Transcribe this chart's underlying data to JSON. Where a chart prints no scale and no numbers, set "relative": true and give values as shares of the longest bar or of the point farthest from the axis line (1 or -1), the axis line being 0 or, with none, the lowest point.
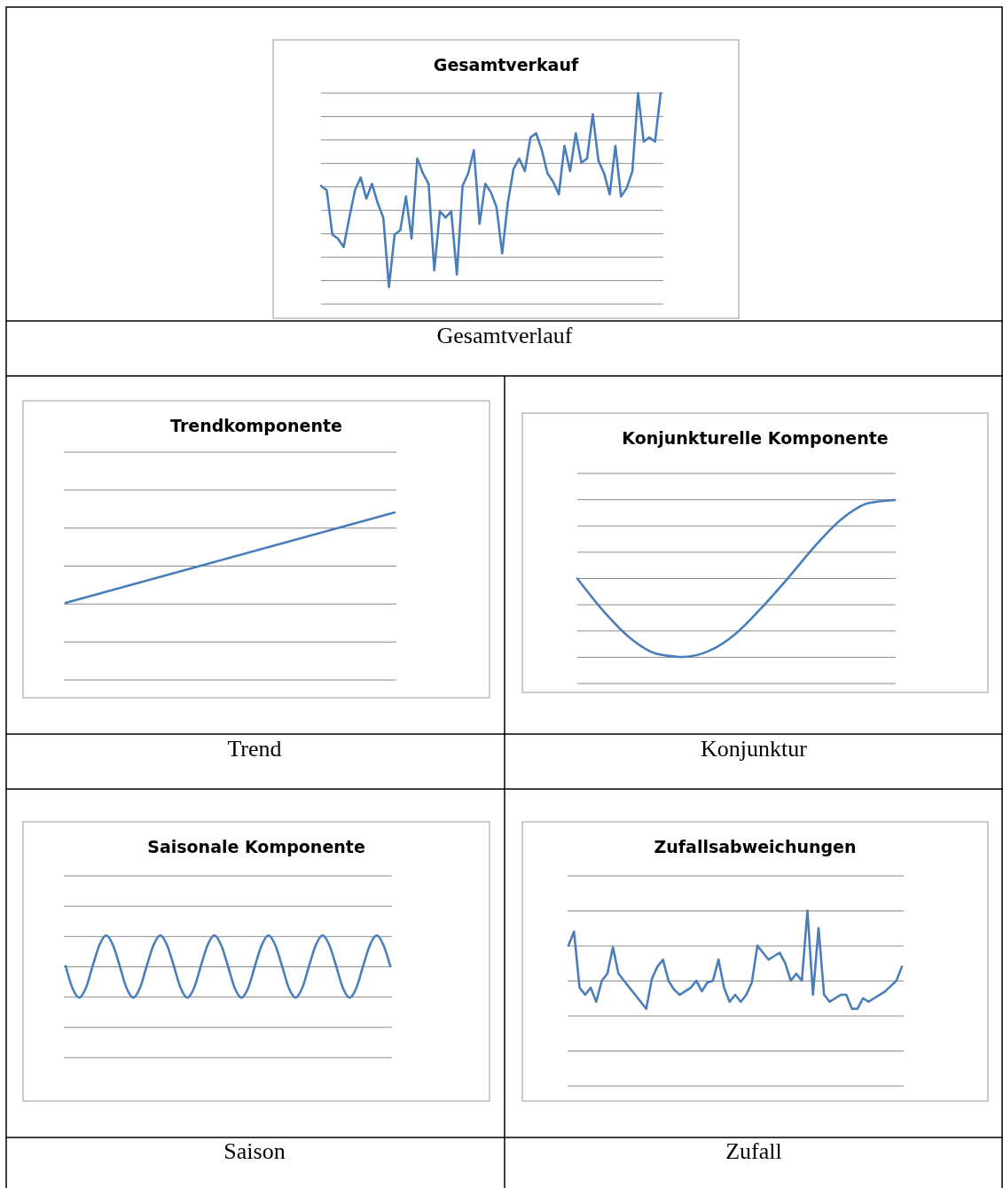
{
  "chart_data": [
    {
      "type": "line",
      "title": "Gesamtverkauf",
      "relative": true,
      "grid": "y",
      "color": "#4a7ebb",
      "annotations": [
        "Gesamtverlauf"
      ],
      "categories": [
        null,
        null,
        null,
        null,
        null,
        null,
        null,
        null,
        null,
        null,
        null,
        null,
        null,
        null,
        null,
        null,
        null,
        null,
        null,
        null,
        null,
        null,
        null,
        null,
        null,
        null,
        null,
        null,
        null,
        null,
        null,
        null,
        null,
        null,
        null,
        null,
        null,
        null,
        null,
        null,
        null,
        null,
        null,
        null,
        null,
        null,
        null,
        null,
        null,
        null,
        null,
        null,
        null,
        null,
        null,
        null,
        null,
        null,
        null,
        null,
        null
      ],
      "values": [
        0.56,
        0.54,
        0.33,
        0.31,
        0.27,
        0.41,
        0.54,
        0.6,
        0.5,
        0.57,
        0.48,
        0.41,
        0.08,
        0.33,
        0.35,
        0.51,
        0.31,
        0.69,
        0.62,
        0.57,
        0.16,
        0.44,
        0.41,
        0.44,
        0.14,
        0.56,
        0.62,
        0.73,
        0.38,
        0.57,
        0.53,
        0.46,
        0.24,
        0.48,
        0.64,
        0.69,
        0.63,
        0.79,
        0.81,
        0.73,
        0.62,
        0.58,
        0.52,
        0.75,
        0.63,
        0.81,
        0.67,
        0.69,
        0.9,
        0.68,
        0.62,
        0.52,
        0.75,
        0.51,
        0.55,
        0.63,
        1,
        0.77,
        0.79,
        0.77,
        1
      ]
    },
    {
      "type": "line",
      "title": "Trendkomponente",
      "relative": true,
      "grid": "y",
      "color": "#4a7ebb",
      "annotations": [
        "Trend"
      ],
      "categories": [
        null,
        null,
        null,
        null,
        null,
        null,
        null,
        null,
        null,
        null,
        null,
        null,
        null
      ],
      "values": [
        0.46,
        0.505,
        0.55,
        0.595,
        0.64,
        0.685,
        0.73,
        0.775,
        0.82,
        0.865,
        0.91,
        0.955,
        1
      ]
    },
    {
      "type": "line",
      "title": "Konjunkturelle Komponente",
      "relative": true,
      "grid": "y",
      "color": "#4a7ebb",
      "annotations": [
        "Konjunktur"
      ],
      "categories": [
        null,
        null,
        null,
        null,
        null,
        null,
        null,
        null,
        null,
        null,
        null,
        null,
        null
      ],
      "values": [
        0.5,
        0.29,
        0.12,
        0.02,
        0,
        0.04,
        0.15,
        0.32,
        0.51,
        0.71,
        0.88,
        0.98,
        1
      ]
    },
    {
      "type": "line",
      "title": "Saisonale Komponente",
      "relative": true,
      "grid": "y",
      "color": "#4a7ebb",
      "annotations": [
        "Saison"
      ],
      "categories": [
        null,
        null,
        null,
        null,
        null,
        null,
        null,
        null,
        null,
        null,
        null,
        null,
        null,
        null,
        null,
        null,
        null,
        null,
        null,
        null,
        null,
        null,
        null,
        null,
        null,
        null,
        null,
        null,
        null,
        null,
        null,
        null,
        null,
        null,
        null,
        null,
        null,
        null,
        null,
        null,
        null,
        null,
        null,
        null,
        null,
        null,
        null,
        null,
        null
      ],
      "values": [
        0.75,
        0.57,
        0.49,
        0.57,
        0.75,
        0.92,
        1,
        0.92,
        0.75,
        0.57,
        0.49,
        0.57,
        0.75,
        0.92,
        1,
        0.92,
        0.75,
        0.57,
        0.49,
        0.57,
        0.75,
        0.92,
        1,
        0.92,
        0.75,
        0.57,
        0.49,
        0.57,
        0.75,
        0.92,
        1,
        0.92,
        0.75,
        0.57,
        0.49,
        0.57,
        0.75,
        0.92,
        1,
        0.92,
        0.75,
        0.57,
        0.49,
        0.57,
        0.75,
        0.92,
        1,
        0.92,
        0.75
      ]
    },
    {
      "type": "line",
      "title": "Zufallsabweichungen",
      "relative": true,
      "grid": "y",
      "color": "#4a7ebb",
      "annotations": [
        "Zufall"
      ],
      "categories": [
        null,
        null,
        null,
        null,
        null,
        null,
        null,
        null,
        null,
        null,
        null,
        null,
        null,
        null,
        null,
        null,
        null,
        null,
        null,
        null,
        null,
        null,
        null,
        null,
        null,
        null,
        null,
        null,
        null,
        null,
        null,
        null,
        null,
        null,
        null,
        null,
        null,
        null,
        null,
        null,
        null,
        null,
        null,
        null,
        null,
        null,
        null,
        null,
        null,
        null,
        null,
        null,
        null,
        null,
        null,
        null,
        null,
        null,
        null,
        null,
        null
      ],
      "values": [
        0.8,
        0.88,
        0.56,
        0.52,
        0.56,
        0.48,
        0.6,
        0.64,
        0.79,
        0.64,
        0.6,
        0.56,
        0.52,
        0.48,
        0.44,
        0.61,
        0.68,
        0.72,
        0.6,
        0.55,
        0.52,
        0.54,
        0.56,
        0.6,
        0.54,
        0.59,
        0.6,
        0.72,
        0.56,
        0.48,
        0.52,
        0.48,
        0.52,
        0.59,
        0.8,
        0.76,
        0.72,
        0.74,
        0.76,
        0.7,
        0.6,
        0.64,
        0.6,
        1,
        0.52,
        0.9,
        0.52,
        0.48,
        0.5,
        0.52,
        0.52,
        0.44,
        0.44,
        0.5,
        0.48,
        0.5,
        0.52,
        0.54,
        0.57,
        0.6,
        0.68
      ]
    }
  ]
}
